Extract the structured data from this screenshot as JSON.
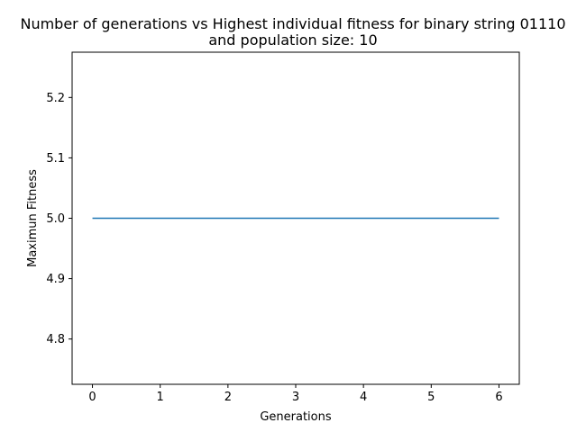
{
  "chart_data": {
    "type": "line",
    "title_line1": "Number of generations vs Highest individual fitness for binary string 01110",
    "title_line2": "and population size: 10",
    "xlabel": "Generations",
    "ylabel": "Maximun Fitness",
    "xlim": [
      -0.3,
      6.3
    ],
    "ylim": [
      4.725,
      5.275
    ],
    "xticks": [
      0,
      1,
      2,
      3,
      4,
      5,
      6
    ],
    "yticks": [
      4.8,
      4.9,
      5.0,
      5.1,
      5.2
    ],
    "ytick_labels": [
      "4.8",
      "4.9",
      "5.0",
      "5.1",
      "5.2"
    ],
    "grid": false,
    "series": [
      {
        "color": "#1f77b4",
        "x": [
          0,
          1,
          2,
          3,
          4,
          5,
          6
        ],
        "y": [
          5.0,
          5.0,
          5.0,
          5.0,
          5.0,
          5.0,
          5.0
        ]
      }
    ]
  }
}
